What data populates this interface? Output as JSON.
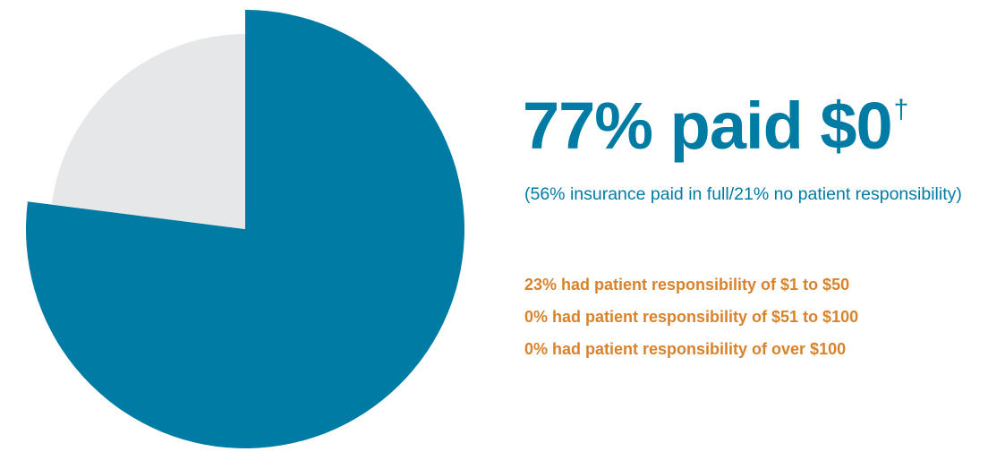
{
  "chart_data": {
    "type": "pie",
    "slices": [
      {
        "label": "paid $0",
        "value": 77,
        "color": "#007ba4",
        "exploded": true
      },
      {
        "label": "had patient responsibility",
        "value": 23,
        "color": "#e6e7e8",
        "exploded": false
      }
    ],
    "start": "12 o'clock",
    "direction": "clockwise"
  },
  "headline": {
    "text": "77% paid $0",
    "dagger": "†",
    "color": "#007ba4"
  },
  "subline": {
    "text": "(56% insurance paid in full/21% no patient responsibility)",
    "color": "#007ba4"
  },
  "details": {
    "color": "#d9822b",
    "items": [
      "23% had patient responsibility of $1 to $50",
      "0% had patient responsibility of $51 to $100",
      "0% had patient responsibility of over $100"
    ]
  }
}
